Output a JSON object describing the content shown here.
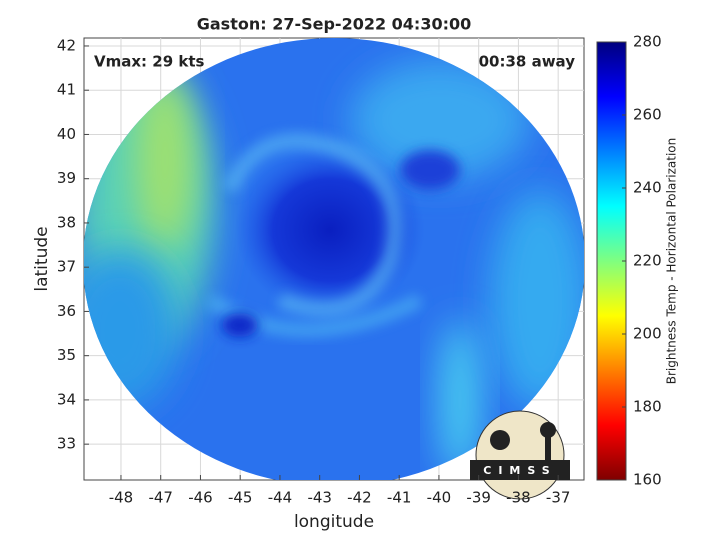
{
  "chart_data": {
    "type": "image",
    "title": "Gaston: 27-Sep-2022 04:30:00",
    "xlabel": "longitude",
    "ylabel": "latitude",
    "annotation_left": "Vmax: 29 kts",
    "annotation_right": "00:38 away",
    "xlim": [
      -48.93,
      -36.35
    ],
    "ylim": [
      32.19,
      42.18
    ],
    "xticks": [
      -48,
      -47,
      -46,
      -45,
      -44,
      -43,
      -42,
      -41,
      -40,
      -39,
      -38,
      -37
    ],
    "yticks": [
      33,
      34,
      35,
      36,
      37,
      38,
      39,
      40,
      41,
      42
    ],
    "grid": true,
    "colorbar": {
      "label": "Brightness Temp - Horizontal Polarization",
      "colormap": "jet",
      "lim": [
        160,
        280
      ],
      "ticks": [
        160,
        180,
        200,
        220,
        240,
        260,
        280
      ]
    },
    "logo_text": "CIMSS"
  }
}
